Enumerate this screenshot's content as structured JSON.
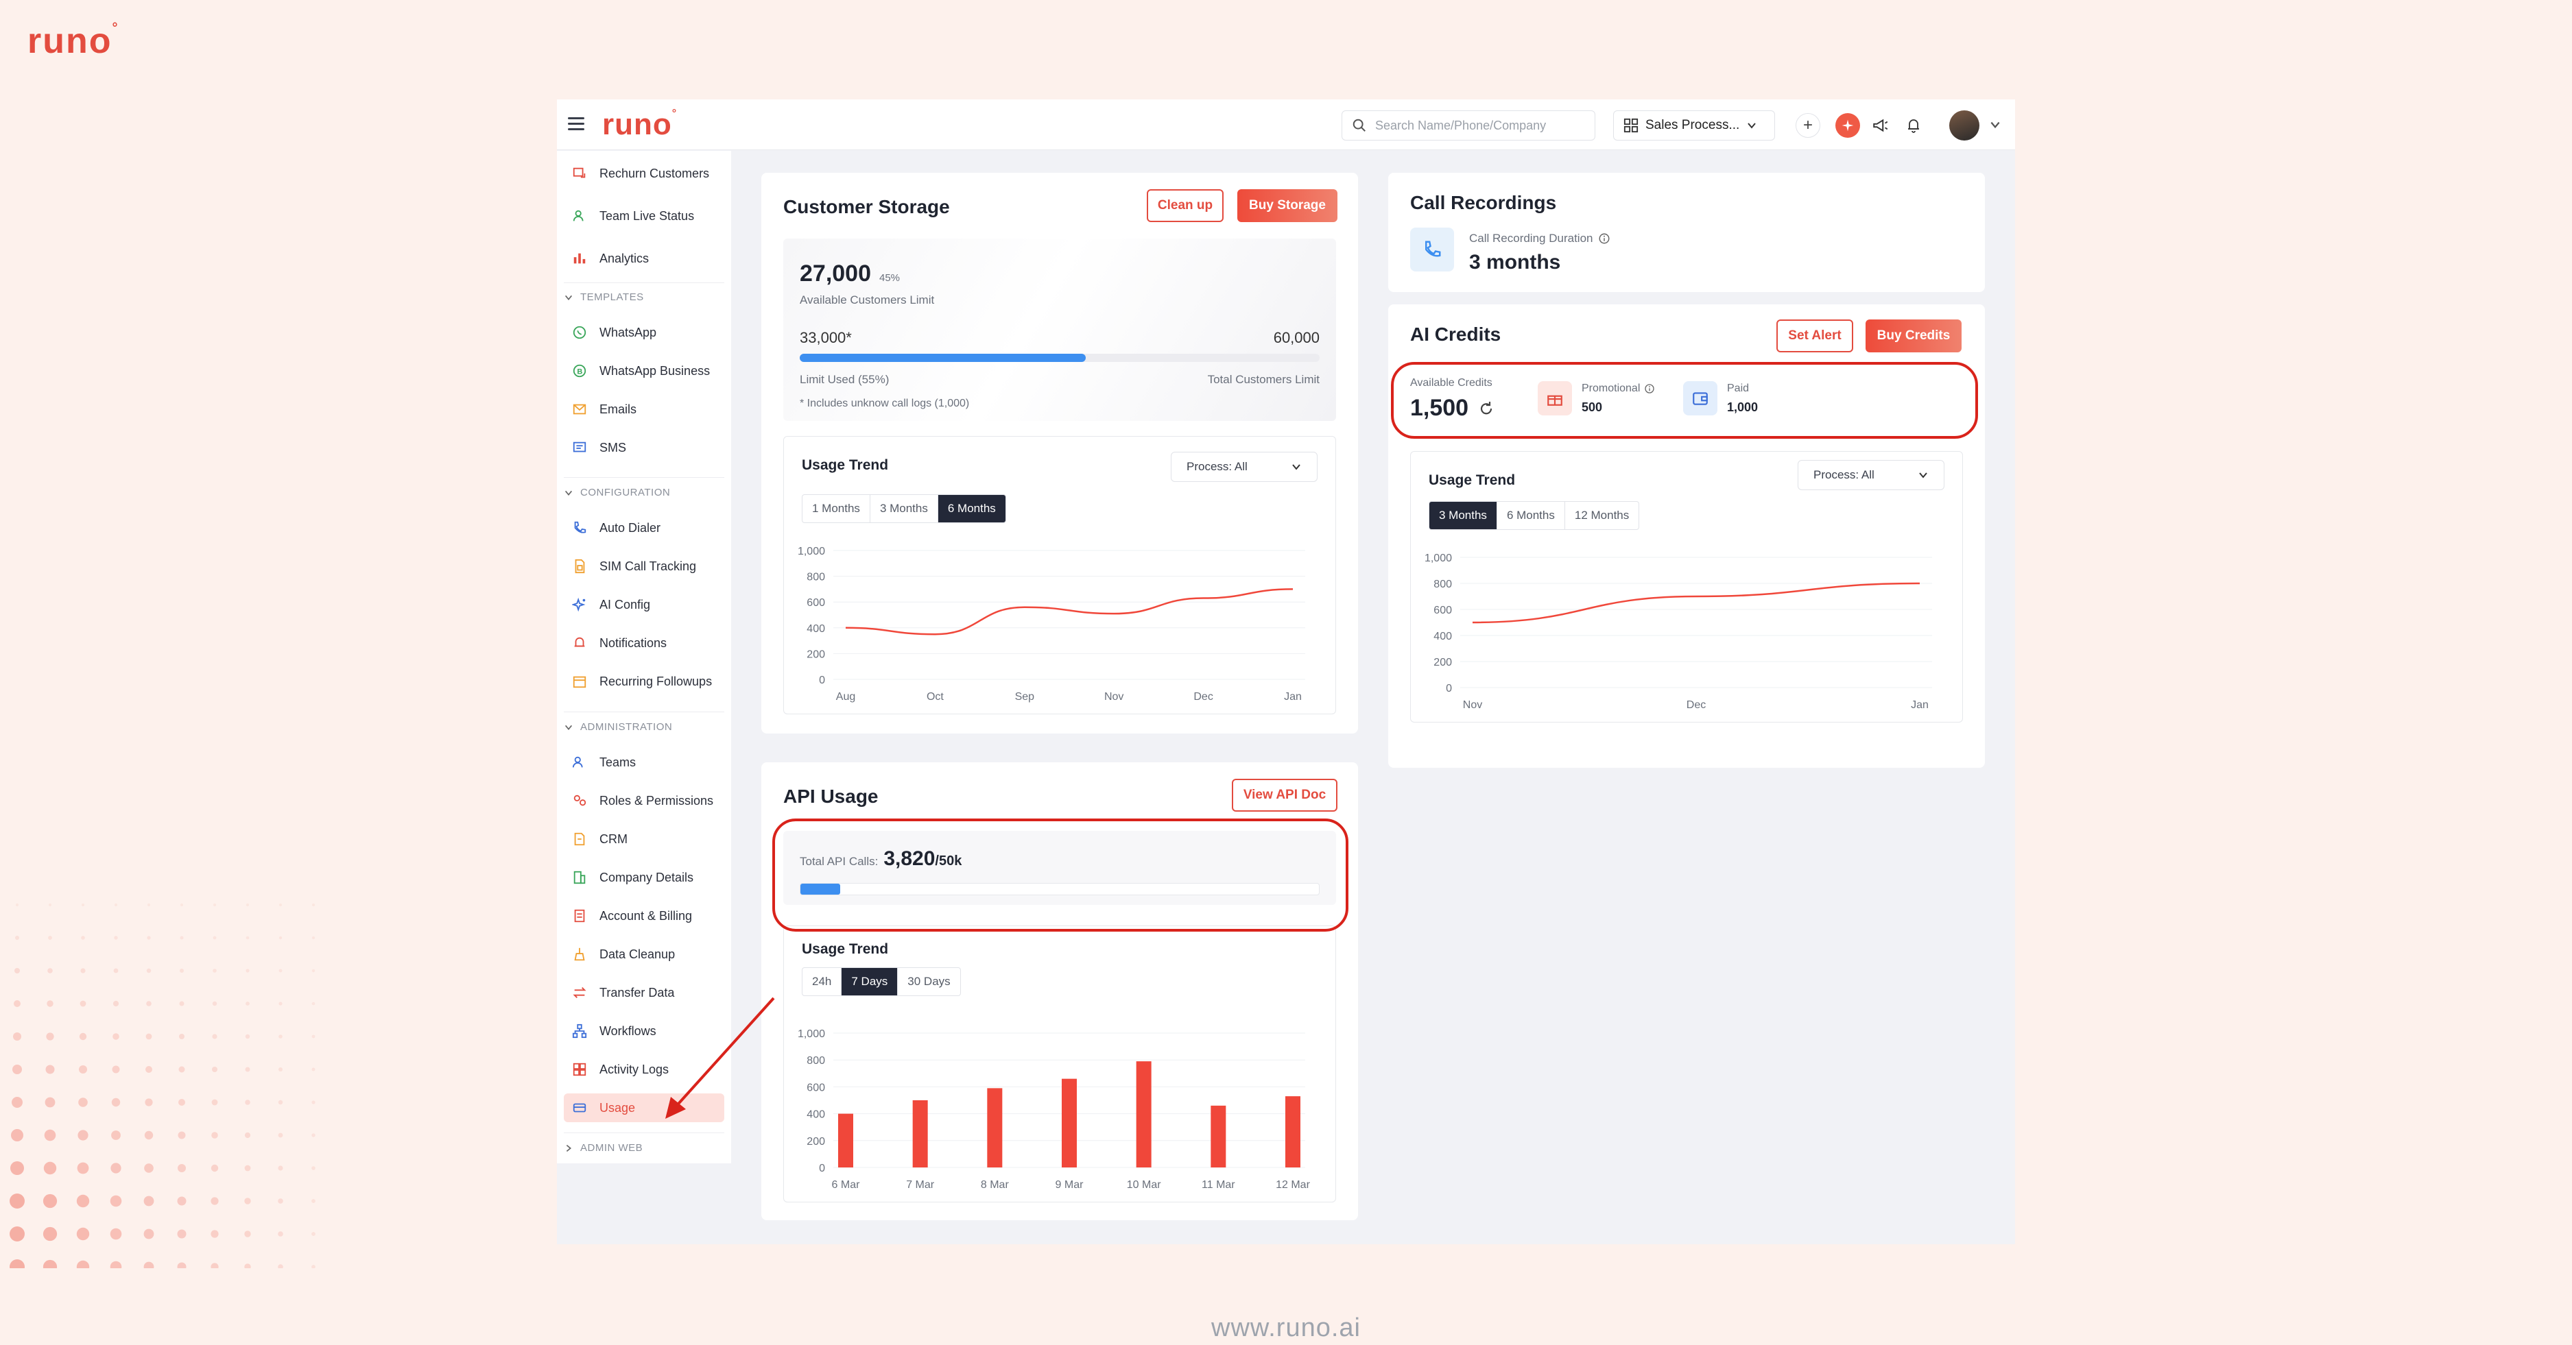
{
  "brand": {
    "logo_text": "runo",
    "footer_url": "www.runo.ai"
  },
  "header": {
    "search_placeholder": "Search Name/Phone/Company",
    "process_selector": "Sales Process..."
  },
  "sidebar": {
    "items_top": [
      {
        "label": "Rechurn Customers",
        "icon": "customers-icon"
      },
      {
        "label": "Team Live Status",
        "icon": "user-status-icon"
      },
      {
        "label": "Analytics",
        "icon": "analytics-icon"
      }
    ],
    "sections": [
      {
        "title": "TEMPLATES",
        "items": [
          {
            "label": "WhatsApp",
            "icon": "whatsapp-icon"
          },
          {
            "label": "WhatsApp Business",
            "icon": "whatsapp-business-icon"
          },
          {
            "label": "Emails",
            "icon": "email-icon"
          },
          {
            "label": "SMS",
            "icon": "sms-icon"
          }
        ]
      },
      {
        "title": "CONFIGURATION",
        "items": [
          {
            "label": "Auto Dialer",
            "icon": "phone-icon"
          },
          {
            "label": "SIM Call Tracking",
            "icon": "sim-icon"
          },
          {
            "label": "AI Config",
            "icon": "sparkle-icon"
          },
          {
            "label": "Notifications",
            "icon": "bell-icon"
          },
          {
            "label": "Recurring Followups",
            "icon": "calendar-icon"
          }
        ]
      },
      {
        "title": "ADMINISTRATION",
        "items": [
          {
            "label": "Teams",
            "icon": "team-icon"
          },
          {
            "label": "Roles & Permissions",
            "icon": "roles-icon"
          },
          {
            "label": "CRM",
            "icon": "crm-icon"
          },
          {
            "label": "Company Details",
            "icon": "building-icon"
          },
          {
            "label": "Account & Billing",
            "icon": "billing-icon"
          },
          {
            "label": "Data Cleanup",
            "icon": "broom-icon"
          },
          {
            "label": "Transfer Data",
            "icon": "transfer-icon"
          },
          {
            "label": "Workflows",
            "icon": "workflow-icon"
          },
          {
            "label": "Activity Logs",
            "icon": "logs-icon"
          },
          {
            "label": "Usage",
            "icon": "usage-icon",
            "active": true
          }
        ]
      }
    ],
    "collapsed_section": "ADMIN WEB"
  },
  "customer_storage": {
    "title": "Customer Storage",
    "cleanup_label": "Clean up",
    "buy_label": "Buy Storage",
    "available_value": "27,000",
    "available_percent": "45%",
    "available_label": "Available Customers Limit",
    "used_value": "33,000*",
    "total_value": "60,000",
    "used_fraction": 0.55,
    "used_label": "Limit Used (55%)",
    "total_label": "Total Customers Limit",
    "footnote": "* Includes unknow call logs (1,000)"
  },
  "storage_trend": {
    "title": "Usage Trend",
    "ranges": [
      "1 Months",
      "3 Months",
      "6 Months"
    ],
    "active_range": "6 Months",
    "process_filter": "Process: All"
  },
  "api_usage": {
    "title": "API Usage",
    "doc_label": "View API Doc",
    "total_label": "Total API Calls:",
    "total_value": "3,820",
    "limit": "/50k",
    "used_fraction": 0.0764
  },
  "api_trend": {
    "title": "Usage Trend",
    "ranges": [
      "24h",
      "7 Days",
      "30 Days"
    ],
    "active_range": "7 Days"
  },
  "call_recordings": {
    "title": "Call Recordings",
    "duration_label": "Call Recording Duration",
    "duration_value": "3 months"
  },
  "ai_credits": {
    "title": "AI Credits",
    "alert_label": "Set Alert",
    "buy_label": "Buy Credits",
    "available_label": "Available Credits",
    "available_value": "1,500",
    "promotional_label": "Promotional",
    "promotional_value": "500",
    "paid_label": "Paid",
    "paid_value": "1,000"
  },
  "ai_trend": {
    "title": "Usage Trend",
    "ranges": [
      "3 Months",
      "6 Months",
      "12 Months"
    ],
    "active_range": "3 Months",
    "process_filter": "Process: All"
  },
  "chart_data": [
    {
      "type": "line",
      "categories": [
        "Aug",
        "Oct",
        "Sep",
        "Nov",
        "Dec",
        "Jan"
      ],
      "values": [
        400,
        350,
        560,
        510,
        630,
        700
      ],
      "ylim": [
        0,
        1000
      ],
      "yticks": [
        "1,000",
        "800",
        "600",
        "400",
        "200",
        "0"
      ]
    },
    {
      "type": "bar",
      "categories": [
        "6 Mar",
        "7 Mar",
        "8 Mar",
        "9 Mar",
        "10 Mar",
        "11 Mar",
        "12 Mar"
      ],
      "values": [
        400,
        500,
        590,
        660,
        790,
        460,
        530
      ],
      "ylim": [
        0,
        1000
      ],
      "yticks": [
        "1,000",
        "800",
        "600",
        "400",
        "200",
        "0"
      ]
    },
    {
      "type": "line",
      "categories": [
        "Nov",
        "Dec",
        "Jan"
      ],
      "values": [
        500,
        700,
        800
      ],
      "ylim": [
        0,
        1000
      ],
      "yticks": [
        "1,000",
        "800",
        "600",
        "400",
        "200",
        "0"
      ]
    }
  ],
  "colors": {
    "accent": "#e34c3f",
    "bar": "#f0473a",
    "progress": "#3d8ff0",
    "dark": "#232838",
    "highlight": "#d9231b"
  }
}
